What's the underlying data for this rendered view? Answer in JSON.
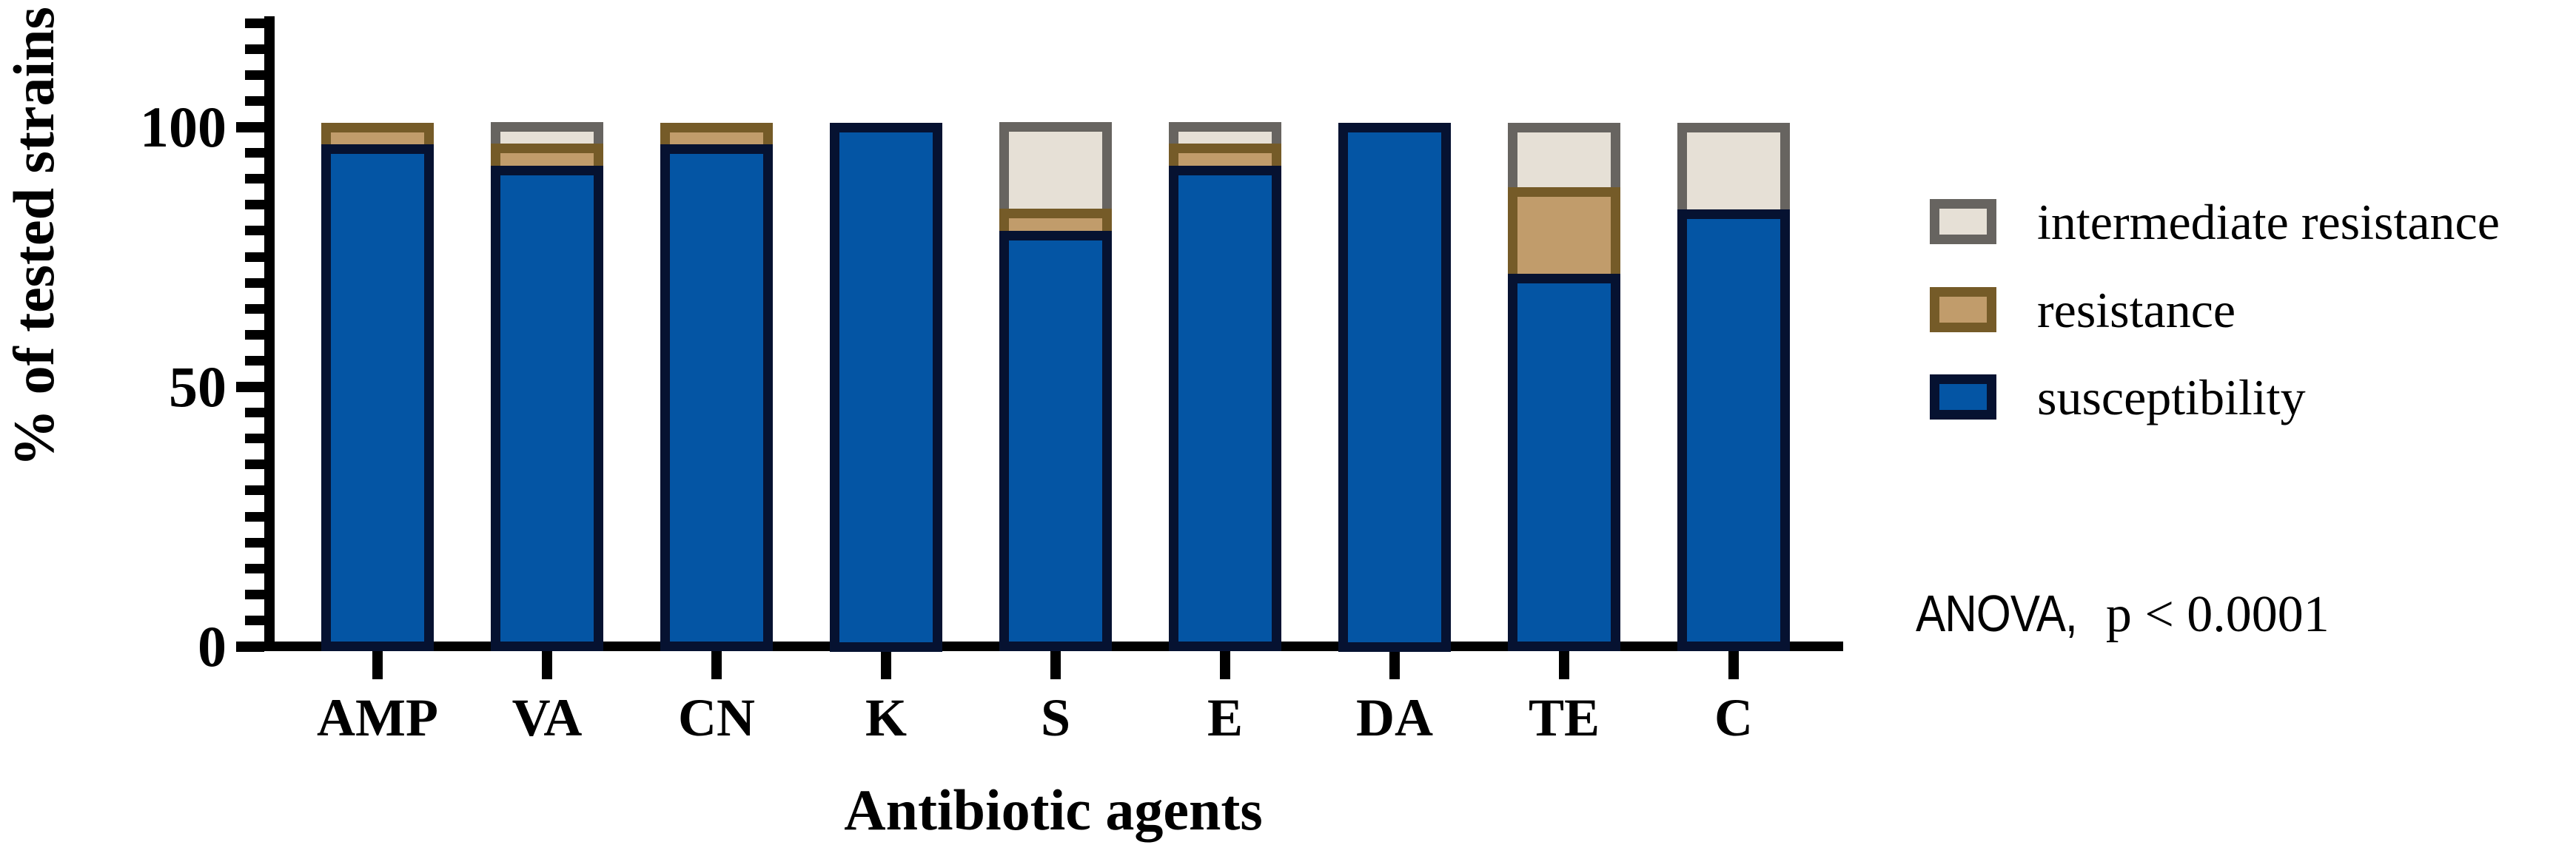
{
  "chart_data": {
    "type": "bar",
    "stacked": true,
    "orientation": "vertical",
    "title": "",
    "xlabel": "Antibiotic agents",
    "ylabel": "% of tested strains",
    "ylim": [
      0,
      100
    ],
    "y_axis_drawn_to": 121,
    "y_major_ticks": [
      "0",
      "50",
      "100"
    ],
    "y_major_tick_values": [
      0,
      50,
      100
    ],
    "y_minor_tick_step": 5,
    "grid": false,
    "categories": [
      "AMP",
      "VA",
      "CN",
      "K",
      "S",
      "E",
      "DA",
      "TE",
      "C"
    ],
    "series": [
      {
        "name": "susceptibility",
        "fill_color": "#0455A4",
        "border_color": "#061231",
        "values": [
          95.8,
          91.7,
          95.8,
          100,
          79.2,
          91.7,
          100,
          70.8,
          83.3
        ]
      },
      {
        "name": "resistance",
        "fill_color": "#C19C6B",
        "border_color": "#755B28",
        "values": [
          4.2,
          4.2,
          4.2,
          0,
          4.2,
          4.2,
          0,
          16.7,
          0
        ]
      },
      {
        "name": "intermediate resistance",
        "fill_color": "#E6E0D6",
        "border_color": "#676460",
        "values": [
          0,
          4.2,
          0,
          0,
          16.7,
          4.2,
          0,
          12.5,
          16.7
        ]
      }
    ],
    "legend": {
      "position": "right",
      "entries": [
        {
          "label": "intermediate resistance",
          "fill_color": "#E6E0D6",
          "border_color": "#676460"
        },
        {
          "label": "resistance",
          "fill_color": "#C19C6B",
          "border_color": "#755B28"
        },
        {
          "label": "susceptibility",
          "fill_color": "#0455A4",
          "border_color": "#061231"
        }
      ]
    },
    "annotation": {
      "prefix": "ANOVA,",
      "pvalue_text": "p < 0.0001"
    }
  }
}
